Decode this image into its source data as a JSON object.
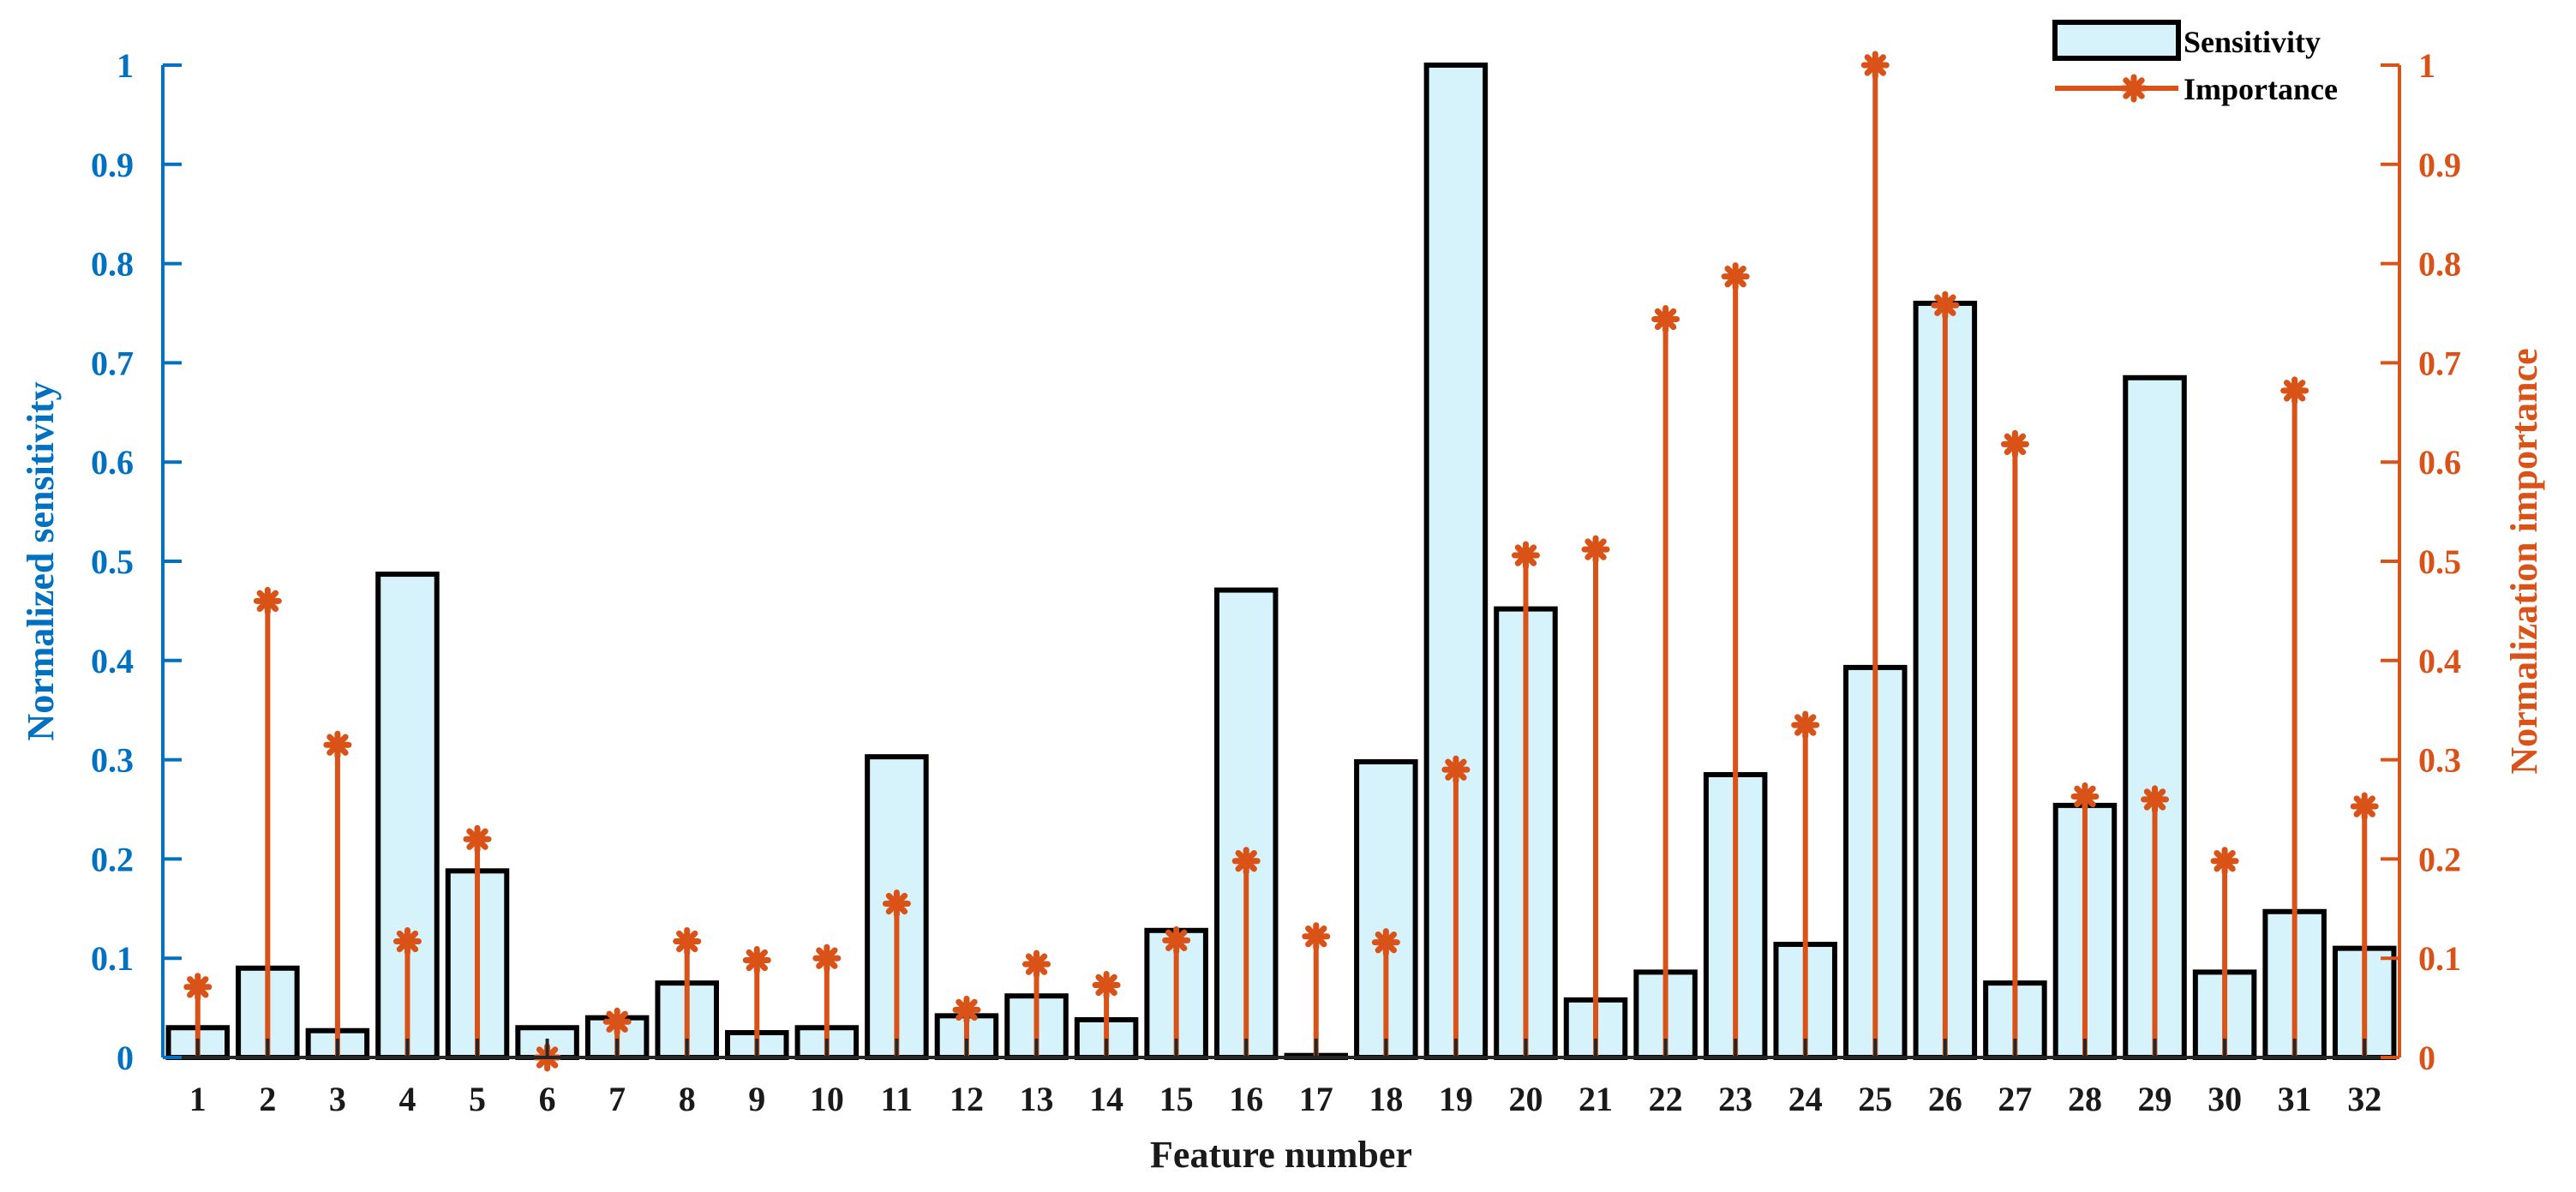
{
  "chart_data": {
    "type": "bar",
    "categories": [
      "1",
      "2",
      "3",
      "4",
      "5",
      "6",
      "7",
      "8",
      "9",
      "10",
      "11",
      "12",
      "13",
      "14",
      "15",
      "16",
      "17",
      "18",
      "19",
      "20",
      "21",
      "22",
      "23",
      "24",
      "25",
      "26",
      "27",
      "28",
      "29",
      "30",
      "31",
      "32"
    ],
    "series": [
      {
        "name": "Sensitivity",
        "type": "bar",
        "axis": "left",
        "values": [
          0.03,
          0.09,
          0.027,
          0.487,
          0.188,
          0.03,
          0.04,
          0.075,
          0.025,
          0.03,
          0.303,
          0.042,
          0.062,
          0.038,
          0.128,
          0.471,
          0.002,
          0.298,
          1.0,
          0.452,
          0.058,
          0.086,
          0.285,
          0.114,
          0.393,
          0.76,
          0.075,
          0.254,
          0.685,
          0.086,
          0.147,
          0.11
        ]
      },
      {
        "name": "Importance",
        "type": "stem",
        "axis": "right",
        "values": [
          0.071,
          0.46,
          0.315,
          0.117,
          0.22,
          0.0,
          0.036,
          0.117,
          0.098,
          0.1,
          0.155,
          0.048,
          0.094,
          0.073,
          0.118,
          0.198,
          0.122,
          0.116,
          0.29,
          0.506,
          0.512,
          0.744,
          0.787,
          0.335,
          1.0,
          0.758,
          0.618,
          0.263,
          0.26,
          0.198,
          0.672,
          0.253
        ]
      }
    ],
    "xlabel": "Feature number",
    "ylabel": "Normalized sensitivity",
    "y2label": "Normalization importance",
    "ylim": [
      0,
      1
    ],
    "y2lim": [
      0,
      1
    ],
    "yticks": [
      "0",
      "0.1",
      "0.2",
      "0.3",
      "0.4",
      "0.5",
      "0.6",
      "0.7",
      "0.8",
      "0.9",
      "1"
    ],
    "legend": {
      "placement": "top-right",
      "entries": [
        "Sensitivity",
        "Importance"
      ]
    },
    "grid": false,
    "colors": {
      "bar_fill": "#D6F2FA",
      "bar_edge": "#000000",
      "stem": "#D95319",
      "left_axis": "#0070C0",
      "right_axis": "#D95319"
    }
  }
}
